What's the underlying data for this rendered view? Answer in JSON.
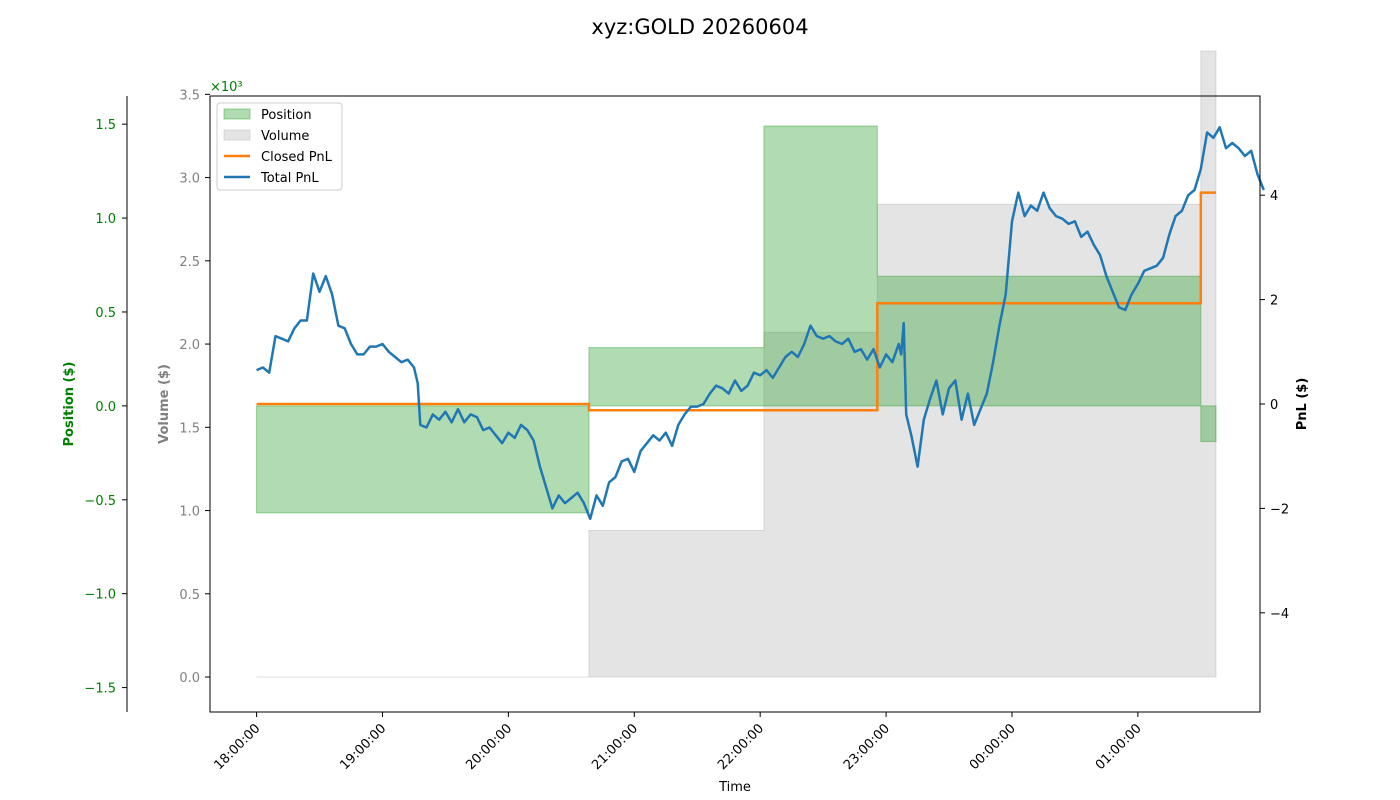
{
  "chart_data": {
    "type": "line",
    "title": "xyz:GOLD 20260604",
    "xlabel": "Time",
    "x_tick_labels": [
      "18:00:00",
      "19:00:00",
      "20:00:00",
      "21:00:00",
      "22:00:00",
      "23:00:00",
      "00:00:00",
      "01:00:00"
    ],
    "x_range_hours": [
      -0.37,
      7.97
    ],
    "axes": {
      "position": {
        "label": "Position ($)",
        "ylim": [
          -1.63,
          1.65
        ],
        "ticks": [
          -1.5,
          -1.0,
          -0.5,
          0.0,
          0.5,
          1.0,
          1.5
        ],
        "tick_labels": [
          "−1.5",
          "−1.0",
          "−0.5",
          "0.0",
          "0.5",
          "1.0",
          "1.5"
        ],
        "color": "#008000"
      },
      "volume": {
        "label": "Volume ($)",
        "ylim": [
          -0.21,
          3.49
        ],
        "ticks": [
          0.0,
          0.5,
          1.0,
          1.5,
          2.0,
          2.5,
          3.0,
          3.5
        ],
        "tick_labels": [
          "0.0",
          "0.5",
          "1.0",
          "1.5",
          "2.0",
          "2.5",
          "3.0",
          "3.5"
        ],
        "scale_label": "×10³",
        "color": "#808080"
      },
      "pnl": {
        "label": "PnL ($)",
        "ylim": [
          -5.9,
          5.9
        ],
        "ticks": [
          -4,
          -2,
          0,
          2,
          4
        ],
        "tick_labels": [
          "−4",
          "−2",
          "0",
          "2",
          "4"
        ],
        "color": "#000000"
      }
    },
    "legend": {
      "placement": "upper-left",
      "entries": [
        "Position",
        "Volume",
        "Closed PnL",
        "Total PnL"
      ]
    },
    "colors": {
      "position": "#2ca02c",
      "volume": "#bbbbbb",
      "closed_pnl": "#ff7f0e",
      "total_pnl": "#1f77b4"
    },
    "series": [
      {
        "name": "Position",
        "kind": "step-area",
        "points": [
          [
            0.0,
            -0.57
          ],
          [
            2.64,
            0.31
          ],
          [
            4.03,
            1.49
          ],
          [
            4.93,
            0.69
          ],
          [
            7.5,
            -0.19
          ],
          [
            7.62,
            -0.19
          ]
        ]
      },
      {
        "name": "Volume",
        "kind": "step-area",
        "points": [
          [
            0.0,
            0.0
          ],
          [
            2.64,
            0.88
          ],
          [
            4.03,
            2.07
          ],
          [
            4.93,
            2.84
          ],
          [
            7.5,
            3.76
          ],
          [
            7.62,
            3.76
          ]
        ]
      },
      {
        "name": "Closed PnL",
        "kind": "step-line",
        "points": [
          [
            0.0,
            0.0
          ],
          [
            2.64,
            -0.12
          ],
          [
            4.93,
            1.93
          ],
          [
            7.5,
            4.05
          ],
          [
            7.62,
            4.05
          ]
        ]
      },
      {
        "name": "Total PnL",
        "kind": "line",
        "points": [
          [
            0.0,
            0.65
          ],
          [
            0.05,
            0.7
          ],
          [
            0.1,
            0.6
          ],
          [
            0.15,
            1.3
          ],
          [
            0.2,
            1.25
          ],
          [
            0.25,
            1.2
          ],
          [
            0.3,
            1.45
          ],
          [
            0.35,
            1.6
          ],
          [
            0.4,
            1.6
          ],
          [
            0.45,
            2.5
          ],
          [
            0.5,
            2.15
          ],
          [
            0.55,
            2.45
          ],
          [
            0.6,
            2.1
          ],
          [
            0.65,
            1.5
          ],
          [
            0.7,
            1.45
          ],
          [
            0.75,
            1.15
          ],
          [
            0.8,
            0.95
          ],
          [
            0.85,
            0.95
          ],
          [
            0.9,
            1.1
          ],
          [
            0.95,
            1.1
          ],
          [
            1.0,
            1.15
          ],
          [
            1.05,
            1.0
          ],
          [
            1.1,
            0.9
          ],
          [
            1.15,
            0.8
          ],
          [
            1.2,
            0.85
          ],
          [
            1.25,
            0.7
          ],
          [
            1.28,
            0.4
          ],
          [
            1.3,
            -0.4
          ],
          [
            1.35,
            -0.45
          ],
          [
            1.4,
            -0.2
          ],
          [
            1.45,
            -0.3
          ],
          [
            1.5,
            -0.15
          ],
          [
            1.55,
            -0.35
          ],
          [
            1.6,
            -0.1
          ],
          [
            1.65,
            -0.35
          ],
          [
            1.7,
            -0.2
          ],
          [
            1.75,
            -0.25
          ],
          [
            1.8,
            -0.5
          ],
          [
            1.85,
            -0.45
          ],
          [
            1.9,
            -0.6
          ],
          [
            1.95,
            -0.75
          ],
          [
            2.0,
            -0.55
          ],
          [
            2.05,
            -0.65
          ],
          [
            2.1,
            -0.4
          ],
          [
            2.15,
            -0.5
          ],
          [
            2.2,
            -0.7
          ],
          [
            2.25,
            -1.2
          ],
          [
            2.3,
            -1.6
          ],
          [
            2.35,
            -2.0
          ],
          [
            2.4,
            -1.75
          ],
          [
            2.45,
            -1.9
          ],
          [
            2.5,
            -1.8
          ],
          [
            2.55,
            -1.7
          ],
          [
            2.6,
            -1.9
          ],
          [
            2.65,
            -2.2
          ],
          [
            2.7,
            -1.75
          ],
          [
            2.75,
            -1.95
          ],
          [
            2.8,
            -1.5
          ],
          [
            2.85,
            -1.4
          ],
          [
            2.9,
            -1.1
          ],
          [
            2.95,
            -1.05
          ],
          [
            3.0,
            -1.3
          ],
          [
            3.05,
            -0.9
          ],
          [
            3.1,
            -0.75
          ],
          [
            3.15,
            -0.6
          ],
          [
            3.2,
            -0.7
          ],
          [
            3.25,
            -0.55
          ],
          [
            3.3,
            -0.8
          ],
          [
            3.35,
            -0.4
          ],
          [
            3.4,
            -0.2
          ],
          [
            3.45,
            -0.05
          ],
          [
            3.5,
            -0.05
          ],
          [
            3.55,
            0.0
          ],
          [
            3.6,
            0.2
          ],
          [
            3.65,
            0.35
          ],
          [
            3.7,
            0.3
          ],
          [
            3.75,
            0.2
          ],
          [
            3.8,
            0.45
          ],
          [
            3.85,
            0.25
          ],
          [
            3.9,
            0.35
          ],
          [
            3.95,
            0.6
          ],
          [
            4.0,
            0.55
          ],
          [
            4.05,
            0.65
          ],
          [
            4.1,
            0.5
          ],
          [
            4.15,
            0.7
          ],
          [
            4.2,
            0.9
          ],
          [
            4.25,
            1.0
          ],
          [
            4.3,
            0.9
          ],
          [
            4.35,
            1.15
          ],
          [
            4.4,
            1.5
          ],
          [
            4.45,
            1.3
          ],
          [
            4.5,
            1.25
          ],
          [
            4.55,
            1.3
          ],
          [
            4.6,
            1.2
          ],
          [
            4.65,
            1.15
          ],
          [
            4.7,
            1.25
          ],
          [
            4.75,
            1.0
          ],
          [
            4.8,
            1.05
          ],
          [
            4.85,
            0.85
          ],
          [
            4.9,
            1.05
          ],
          [
            4.95,
            0.7
          ],
          [
            5.0,
            0.95
          ],
          [
            5.05,
            0.8
          ],
          [
            5.1,
            1.15
          ],
          [
            5.12,
            0.95
          ],
          [
            5.14,
            1.55
          ],
          [
            5.16,
            -0.2
          ],
          [
            5.2,
            -0.6
          ],
          [
            5.25,
            -1.2
          ],
          [
            5.3,
            -0.3
          ],
          [
            5.35,
            0.1
          ],
          [
            5.4,
            0.45
          ],
          [
            5.45,
            -0.2
          ],
          [
            5.5,
            0.3
          ],
          [
            5.55,
            0.45
          ],
          [
            5.6,
            -0.3
          ],
          [
            5.65,
            0.2
          ],
          [
            5.7,
            -0.4
          ],
          [
            5.75,
            -0.1
          ],
          [
            5.8,
            0.2
          ],
          [
            5.85,
            0.8
          ],
          [
            5.9,
            1.5
          ],
          [
            5.95,
            2.1
          ],
          [
            6.0,
            3.5
          ],
          [
            6.05,
            4.05
          ],
          [
            6.1,
            3.6
          ],
          [
            6.15,
            3.8
          ],
          [
            6.2,
            3.7
          ],
          [
            6.25,
            4.05
          ],
          [
            6.3,
            3.75
          ],
          [
            6.35,
            3.6
          ],
          [
            6.4,
            3.55
          ],
          [
            6.45,
            3.45
          ],
          [
            6.5,
            3.5
          ],
          [
            6.55,
            3.2
          ],
          [
            6.6,
            3.3
          ],
          [
            6.65,
            3.05
          ],
          [
            6.7,
            2.85
          ],
          [
            6.75,
            2.45
          ],
          [
            6.8,
            2.15
          ],
          [
            6.85,
            1.85
          ],
          [
            6.9,
            1.8
          ],
          [
            6.95,
            2.1
          ],
          [
            7.0,
            2.3
          ],
          [
            7.05,
            2.55
          ],
          [
            7.1,
            2.6
          ],
          [
            7.15,
            2.65
          ],
          [
            7.2,
            2.8
          ],
          [
            7.25,
            3.25
          ],
          [
            7.3,
            3.6
          ],
          [
            7.35,
            3.7
          ],
          [
            7.4,
            4.0
          ],
          [
            7.45,
            4.1
          ],
          [
            7.5,
            4.5
          ],
          [
            7.55,
            5.2
          ],
          [
            7.6,
            5.1
          ],
          [
            7.65,
            5.3
          ],
          [
            7.7,
            4.9
          ],
          [
            7.75,
            5.0
          ],
          [
            7.8,
            4.9
          ],
          [
            7.85,
            4.75
          ],
          [
            7.9,
            4.85
          ],
          [
            7.95,
            4.4
          ],
          [
            8.0,
            4.1
          ]
        ]
      }
    ]
  }
}
